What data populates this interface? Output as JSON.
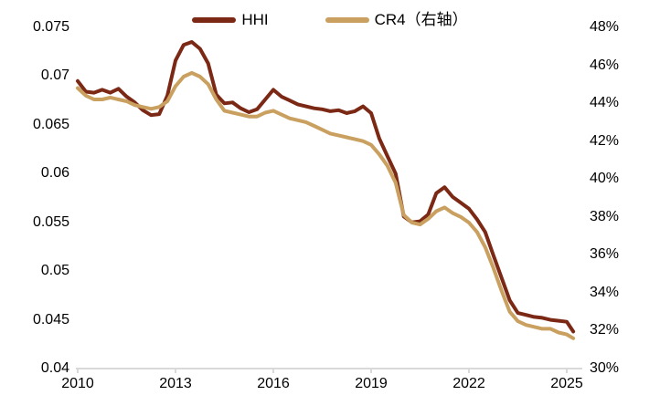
{
  "figure": {
    "background": "#ffffff",
    "axis_line_color": "#d9d9d9",
    "text_color": "#000000"
  },
  "legend": {
    "position": "top-center",
    "items": [
      {
        "label": "HHI",
        "color": "#7b2815"
      },
      {
        "label": "CR4（右轴）",
        "color": "#c9a05f"
      }
    ]
  },
  "chart_data": {
    "type": "line",
    "title": "",
    "xlabel": "",
    "ylabel_left": "",
    "ylabel_right": "",
    "grid": false,
    "legend_position": "top",
    "x_range": [
      2010,
      2025.45
    ],
    "x_ticks": [
      "2010",
      "2013",
      "2016",
      "2019",
      "2022",
      "2025"
    ],
    "x_tick_values": [
      2010,
      2013,
      2016,
      2019,
      2022,
      2025
    ],
    "left_axis": {
      "min": 0.04,
      "max": 0.075,
      "tick_labels": [
        "0.075",
        "0.07",
        "0.065",
        "0.06",
        "0.055",
        "0.05",
        "0.045",
        "0.04"
      ],
      "tick_values": [
        0.075,
        0.07,
        0.065,
        0.06,
        0.055,
        0.05,
        0.045,
        0.04
      ]
    },
    "right_axis": {
      "min": 30,
      "max": 48,
      "tick_labels": [
        "48%",
        "46%",
        "44%",
        "42%",
        "40%",
        "38%",
        "36%",
        "34%",
        "32%",
        "30%"
      ],
      "tick_values": [
        48,
        46,
        44,
        42,
        40,
        38,
        36,
        34,
        32,
        30
      ]
    },
    "x": [
      2010.0,
      2010.25,
      2010.5,
      2010.75,
      2011.0,
      2011.25,
      2011.5,
      2011.75,
      2012.0,
      2012.25,
      2012.5,
      2012.75,
      2013.0,
      2013.25,
      2013.5,
      2013.75,
      2014.0,
      2014.25,
      2014.5,
      2014.75,
      2015.0,
      2015.25,
      2015.5,
      2015.75,
      2016.0,
      2016.25,
      2016.5,
      2016.75,
      2017.0,
      2017.25,
      2017.5,
      2017.75,
      2018.0,
      2018.25,
      2018.5,
      2018.75,
      2019.0,
      2019.25,
      2019.5,
      2019.75,
      2020.0,
      2020.25,
      2020.5,
      2020.75,
      2021.0,
      2021.25,
      2021.5,
      2021.75,
      2022.0,
      2022.25,
      2022.5,
      2022.75,
      2023.0,
      2023.25,
      2023.5,
      2023.75,
      2024.0,
      2024.25,
      2024.5,
      2024.75,
      2025.0,
      2025.2
    ],
    "series": [
      {
        "name": "HHI",
        "axis": "left",
        "color": "#7b2815",
        "values": [
          0.0695,
          0.0684,
          0.0683,
          0.0686,
          0.0683,
          0.0687,
          0.0679,
          0.0673,
          0.0665,
          0.066,
          0.0661,
          0.068,
          0.0716,
          0.0732,
          0.0735,
          0.0728,
          0.0713,
          0.0681,
          0.0672,
          0.0673,
          0.0667,
          0.0663,
          0.0666,
          0.0676,
          0.0686,
          0.0679,
          0.0675,
          0.0671,
          0.0669,
          0.0667,
          0.0666,
          0.0664,
          0.0665,
          0.0662,
          0.0664,
          0.0669,
          0.0662,
          0.0636,
          0.0618,
          0.06,
          0.0556,
          0.055,
          0.0551,
          0.0558,
          0.058,
          0.0586,
          0.0576,
          0.057,
          0.0564,
          0.0553,
          0.054,
          0.0516,
          0.0493,
          0.047,
          0.0457,
          0.0455,
          0.0453,
          0.0452,
          0.045,
          0.0449,
          0.0448,
          0.0438
        ]
      },
      {
        "name": "CR4（右轴）",
        "axis": "right",
        "color": "#c9a05f",
        "values": [
          44.8,
          44.4,
          44.2,
          44.2,
          44.3,
          44.2,
          44.1,
          43.9,
          43.8,
          43.7,
          43.8,
          44.1,
          44.9,
          45.4,
          45.6,
          45.4,
          45.0,
          44.2,
          43.6,
          43.5,
          43.4,
          43.3,
          43.3,
          43.5,
          43.6,
          43.4,
          43.2,
          43.1,
          43.0,
          42.8,
          42.6,
          42.4,
          42.3,
          42.2,
          42.1,
          42.0,
          41.8,
          41.3,
          40.7,
          39.8,
          38.1,
          37.7,
          37.6,
          37.9,
          38.3,
          38.5,
          38.2,
          38.0,
          37.7,
          37.2,
          36.4,
          35.3,
          34.1,
          33.0,
          32.5,
          32.3,
          32.2,
          32.1,
          32.1,
          31.9,
          31.8,
          31.6
        ]
      }
    ]
  }
}
